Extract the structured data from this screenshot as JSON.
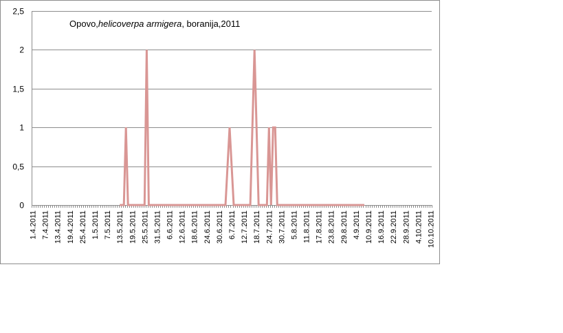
{
  "chart_data": {
    "type": "line",
    "title_parts": [
      "Opovo,",
      "helicoverpa armigera",
      ", boranija,2011"
    ],
    "y_ticks": [
      "0",
      "0,5",
      "1",
      "1,5",
      "2",
      "2,5"
    ],
    "ylim": [
      0,
      2.5
    ],
    "grid": true,
    "legend": "none",
    "series_color": "#d99694",
    "x_labels": [
      "1.4.2011",
      "7.4.2011",
      "13.4.2011",
      "19.4.2011",
      "25.4.2011",
      "1.5.2011",
      "7.5.2011",
      "13.5.2011",
      "19.5.2011",
      "25.5.2011",
      "31.5.2011",
      "6.6.2011",
      "12.6.2011",
      "18.6.2011",
      "24.6.2011",
      "30.6.2011",
      "6.7.2011",
      "12.7.2011",
      "18.7.2011",
      "24.7.2011",
      "30.7.2011",
      "5.8.2011",
      "11.8.2011",
      "17.8.2011",
      "23.8.2011",
      "29.8.2011",
      "4.9.2011",
      "10.9.2011",
      "16.9.2011",
      "22.9.2011",
      "28.9.2011",
      "4.10.2011",
      "10.10.2011"
    ],
    "series": [
      {
        "x": [
          "13.5.2011",
          "15.5.2011",
          "16.5.2011",
          "17.5.2011",
          "20.5.2011",
          "25.5.2011",
          "26.5.2011",
          "27.5.2011",
          "29.5.2011",
          "1.7.2011",
          "3.7.2011",
          "5.7.2011",
          "7.7.2011",
          "15.7.2011",
          "17.7.2011",
          "19.7.2011",
          "21.7.2011",
          "23.7.2011",
          "24.7.2011",
          "25.7.2011",
          "26.7.2011",
          "27.7.2011",
          "28.7.2011",
          "29.7.2011",
          "30.7.2011",
          "31.7.2011",
          "1.8.2011",
          "1.9.2011",
          "8.9.2011"
        ],
        "values": [
          0,
          0,
          1,
          0,
          0,
          0,
          2,
          0,
          0,
          0,
          0,
          1,
          0,
          0,
          2,
          0,
          0,
          0,
          1,
          0,
          1,
          1,
          0,
          0,
          0,
          0,
          0,
          0,
          0
        ]
      }
    ]
  }
}
